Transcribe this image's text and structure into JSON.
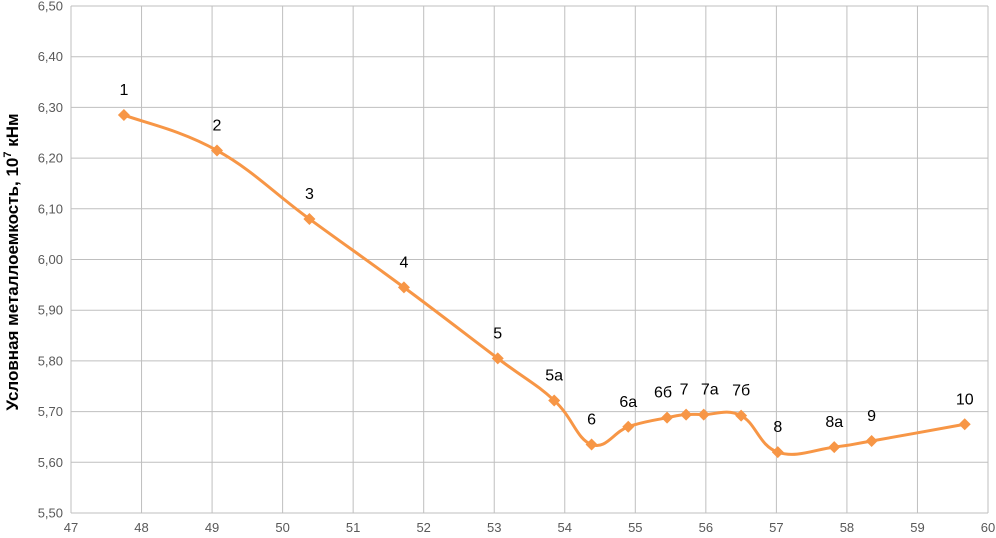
{
  "chart_data": {
    "type": "line",
    "ylabel": "Условная металлоемкость, 10⁷ кНм",
    "ylabel_main": "Условная металлоемкость, 10",
    "ylabel_sup": "7",
    "ylabel_unit": " кНм",
    "xlim": [
      47,
      60
    ],
    "ylim": [
      5.5,
      6.5
    ],
    "x_ticks": [
      "47",
      "48",
      "49",
      "50",
      "51",
      "52",
      "53",
      "54",
      "55",
      "56",
      "57",
      "58",
      "59",
      "60"
    ],
    "y_ticks": [
      "5,50",
      "5,60",
      "5,70",
      "5,80",
      "5,90",
      "6,00",
      "6,10",
      "6,20",
      "6,30",
      "6,40",
      "6,50"
    ],
    "grid": true,
    "series_color": "#f79646",
    "points": [
      {
        "label": "1",
        "x": 47.75,
        "y": 6.285
      },
      {
        "label": "2",
        "x": 49.07,
        "y": 6.215
      },
      {
        "label": "3",
        "x": 50.38,
        "y": 6.08
      },
      {
        "label": "4",
        "x": 51.72,
        "y": 5.945
      },
      {
        "label": "5",
        "x": 53.05,
        "y": 5.805
      },
      {
        "label": "5а",
        "x": 53.85,
        "y": 5.722
      },
      {
        "label": "6",
        "x": 54.38,
        "y": 5.635
      },
      {
        "label": "6а",
        "x": 54.9,
        "y": 5.67
      },
      {
        "label": "6б",
        "x": 55.45,
        "y": 5.688
      },
      {
        "label": "7",
        "x": 55.72,
        "y": 5.694
      },
      {
        "label": "7а",
        "x": 55.97,
        "y": 5.694
      },
      {
        "label": "7б",
        "x": 56.5,
        "y": 5.692
      },
      {
        "label": "8",
        "x": 57.02,
        "y": 5.62
      },
      {
        "label": "8а",
        "x": 57.82,
        "y": 5.63
      },
      {
        "label": "9",
        "x": 58.35,
        "y": 5.642
      },
      {
        "label": "10",
        "x": 59.67,
        "y": 5.675
      }
    ]
  }
}
